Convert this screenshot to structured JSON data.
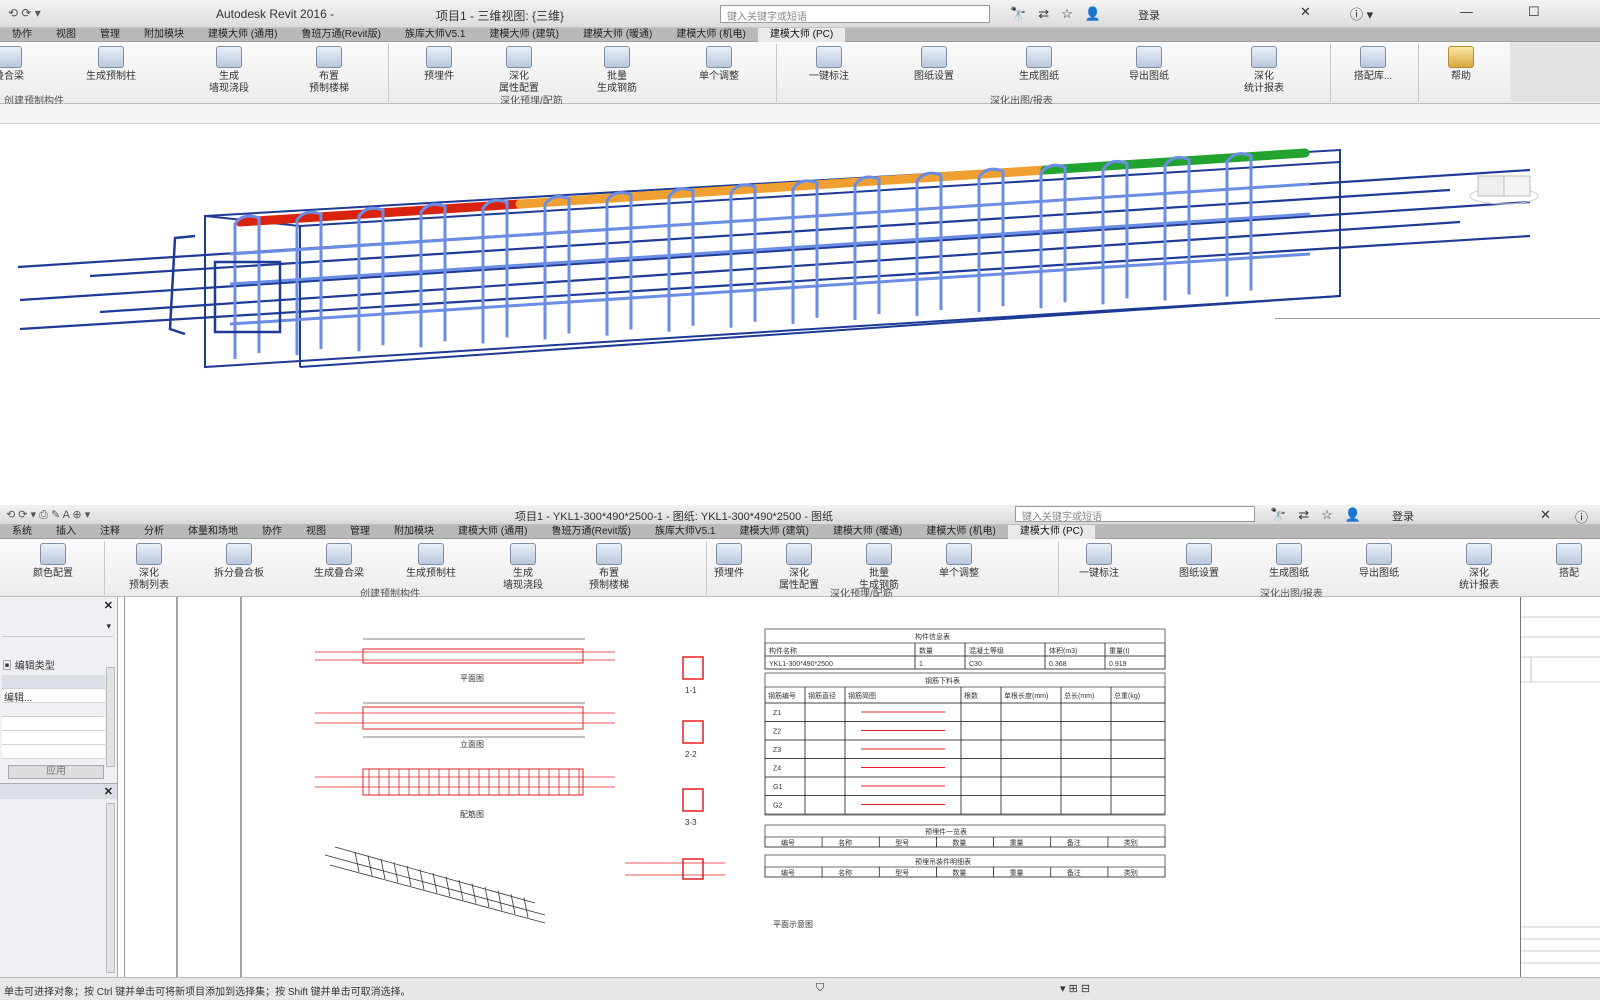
{
  "window1": {
    "title": "Autodesk Revit 2016 -",
    "title_project": "项目1 - 三维视图: {三维}",
    "search_placeholder": "键入关键字或短语",
    "login": "登录",
    "tabs": [
      "协作",
      "视图",
      "管理",
      "附加模块",
      "建模大师 (通用)",
      "鲁班万通(Revit版)",
      "族库大师V5.1",
      "建模大师 (建筑)",
      "建模大师 (暖通)",
      "建模大师 (机电)",
      "建模大师 (PC)"
    ],
    "active_tab": 10,
    "ribbon_buttons": [
      "叠合梁",
      "生成预制柱",
      "生成\n墙现浇段",
      "布置\n预制楼梯",
      "预埋件",
      "深化\n属性配置",
      "批量\n生成钢筋",
      "单个调整",
      "一键标注",
      "图纸设置",
      "生成图纸",
      "导出图纸",
      "深化\n统计报表",
      "搭配库...",
      "帮助"
    ],
    "groups": [
      "创建预制构件",
      "深化预埋/配筋",
      "深化出图/报表"
    ]
  },
  "window2": {
    "title": "项目1 - YKL1-300*490*2500-1 - 图纸: YKL1-300*490*2500 - 图纸",
    "search_placeholder": "键入关键字或短语",
    "login": "登录",
    "tabs": [
      "系统",
      "插入",
      "注释",
      "分析",
      "体量和场地",
      "协作",
      "视图",
      "管理",
      "附加模块",
      "建模大师 (通用)",
      "鲁班万通(Revit版)",
      "族库大师V5.1",
      "建模大师 (建筑)",
      "建模大师 (暖通)",
      "建模大师 (机电)",
      "建模大师 (PC)"
    ],
    "active_tab": 15,
    "ribbon_buttons": [
      "颜色配置",
      "深化\n预制列表",
      "拆分叠合板",
      "生成叠合梁",
      "生成预制柱",
      "生成\n墙现浇段",
      "布置\n预制楼梯",
      "预埋件",
      "深化\n属性配置",
      "批量\n生成钢筋",
      "单个调整",
      "一键标注",
      "图纸设置",
      "生成图纸",
      "导出图纸",
      "深化\n统计报表",
      "搭配"
    ],
    "groups": [
      "创建预制构件",
      "深化预埋/配筋",
      "深化出图/报表"
    ],
    "left_panel": {
      "edit_type": "编辑类型",
      "row1": "编辑...",
      "apply": "应用"
    },
    "status": "单击可进择对象；按 Ctrl 键并单击可将新项目添加到选择集；按 Shift 键并单击可取消选择。"
  },
  "drawing": {
    "captions": [
      "平面图",
      "立面图",
      "配筋图",
      "1-1",
      "2-2",
      "3-3",
      "平面示意图"
    ],
    "table1_title": "构件信息表",
    "table1_headers": [
      "构件名称",
      "数量",
      "混凝土等级",
      "体积(m3)",
      "重量(t)"
    ],
    "table1_row": [
      "YKL1-300*490*2500",
      "1",
      "C30",
      "0.368",
      "0.919"
    ],
    "table2_title": "钢筋下料表",
    "table2_headers": [
      "钢筋编号",
      "钢筋直径",
      "钢筋简图",
      "根数",
      "单根长度(mm)",
      "总长(mm)",
      "总重(kg)"
    ],
    "table2_codes": [
      "Z1",
      "Z2",
      "Z3",
      "Z4",
      "G1",
      "G2"
    ],
    "table3_title": "预埋件一览表",
    "table3_headers": [
      "编号",
      "名称",
      "型号",
      "数量",
      "重量",
      "备注",
      "类别"
    ],
    "table4_title": "预埋吊装件明细表",
    "table4_headers": [
      "编号",
      "名称",
      "型号",
      "数量",
      "重量",
      "备注",
      "类别"
    ]
  },
  "colors": {
    "rebar": "#6b8de3",
    "rebar_dark": "#1d3a94",
    "segment_red": "#d9230f",
    "segment_orange": "#f0a030",
    "segment_green": "#22a330",
    "drawing_red": "#e02020"
  },
  "icons": {
    "search": "binoculars-icon",
    "exchange": "exchange-icon",
    "help": "help-icon",
    "user": "user-icon",
    "star": "star-icon"
  }
}
